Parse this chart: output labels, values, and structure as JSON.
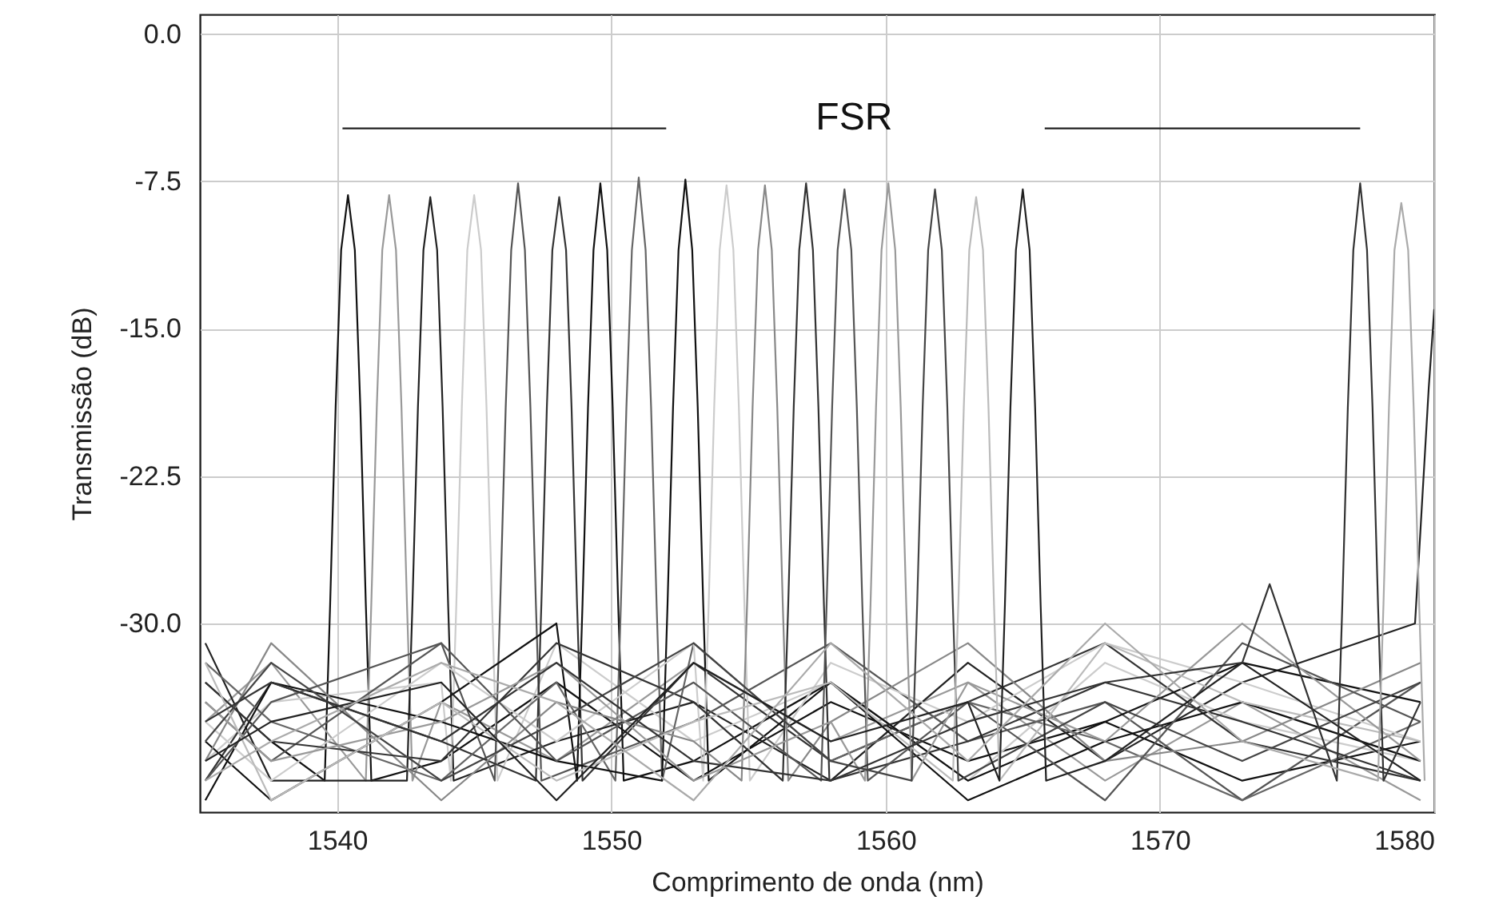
{
  "chart_data": {
    "type": "line",
    "xlabel": "Comprimento de onda (nm)",
    "ylabel": "Transmissão (dB)",
    "xlim": [
      1535,
      1580
    ],
    "ylim": [
      -39.6,
      1
    ],
    "xticks": [
      1540,
      1550,
      1560,
      1570,
      1580
    ],
    "yticks": [
      {
        "value": 0,
        "label": "0.0"
      },
      {
        "value": -7.5,
        "label": "-7.5"
      },
      {
        "value": -15,
        "label": "-15.0"
      },
      {
        "value": -22.5,
        "label": "-22.5"
      },
      {
        "value": -30,
        "label": "-30.0"
      }
    ],
    "grid": true,
    "marker": "none",
    "line_style": "solid",
    "annotations": [
      "FSR"
    ],
    "series": [
      {
        "color": "#111111",
        "x": [
          1535.2,
          1537.6,
          1539.55,
          1539.75,
          1539.95,
          1540.15,
          1540.4,
          1540.65,
          1540.85,
          1541.05,
          1541.25,
          1543.8,
          1548,
          1553,
          1558,
          1563,
          1568,
          1573,
          1579.5
        ],
        "values": [
          -33,
          -36,
          -38,
          -29,
          -19,
          -11,
          -8.2,
          -11,
          -19,
          -29,
          -38,
          -37,
          -33,
          -38,
          -34,
          -37,
          -35,
          -38,
          -36
        ]
      },
      {
        "color": "#999999",
        "x": [
          1535.2,
          1537.6,
          1541.05,
          1541.25,
          1541.45,
          1541.65,
          1541.9,
          1542.15,
          1542.35,
          1542.55,
          1542.75,
          1543.8,
          1548,
          1553,
          1558,
          1563,
          1568,
          1573,
          1579.5
        ],
        "values": [
          -35,
          -32,
          -38,
          -29,
          -19,
          -11,
          -8.2,
          -11,
          -19,
          -29,
          -38,
          -34,
          -37,
          -32,
          -36,
          -33,
          -38,
          -34,
          -39
        ]
      },
      {
        "color": "#222222",
        "x": [
          1535.2,
          1537.6,
          1542.55,
          1542.75,
          1542.95,
          1543.15,
          1543.4,
          1543.65,
          1543.85,
          1544.05,
          1544.25,
          1548,
          1553,
          1558,
          1563,
          1568,
          1573,
          1579.3,
          1579.8,
          1580
        ],
        "values": [
          -31,
          -38,
          -38,
          -29,
          -19,
          -11,
          -8.3,
          -11,
          -19,
          -29,
          -38,
          -36,
          -34,
          -38,
          -32,
          -37,
          -33,
          -30,
          -18,
          -14
        ]
      },
      {
        "color": "#cccccc",
        "x": [
          1535.2,
          1537.6,
          1543.8,
          1544.15,
          1544.35,
          1544.55,
          1544.75,
          1545,
          1545.25,
          1545.45,
          1545.65,
          1545.85,
          1548,
          1553,
          1558,
          1563,
          1568,
          1573,
          1579.5
        ],
        "values": [
          -37,
          -34,
          -33,
          -38,
          -29,
          -19,
          -11,
          -8.2,
          -11,
          -19,
          -29,
          -38,
          -31,
          -36,
          -33,
          -38,
          -32,
          -35,
          -37
        ]
      },
      {
        "color": "#555555",
        "x": [
          1535.2,
          1537.6,
          1543.8,
          1545.75,
          1545.95,
          1546.15,
          1546.35,
          1546.6,
          1546.85,
          1547.05,
          1547.25,
          1547.45,
          1553,
          1558,
          1563,
          1568,
          1573,
          1579.5
        ],
        "values": [
          -34,
          -37,
          -31,
          -38,
          -29,
          -19,
          -11,
          -7.6,
          -11,
          -19,
          -29,
          -38,
          -35,
          -31,
          -36,
          -34,
          -39,
          -33
        ]
      },
      {
        "color": "#333333",
        "x": [
          1535.2,
          1537.6,
          1543.8,
          1547.25,
          1547.45,
          1547.65,
          1547.85,
          1548.1,
          1548.35,
          1548.55,
          1548.75,
          1548.95,
          1553,
          1558,
          1563,
          1568,
          1573,
          1579.5
        ],
        "values": [
          -38,
          -33,
          -36,
          -38,
          -29,
          -19,
          -11,
          -8.3,
          -11,
          -19,
          -29,
          -38,
          -32,
          -37,
          -34,
          -31,
          -36,
          -38
        ]
      },
      {
        "color": "#111111",
        "x": [
          1535.2,
          1537.6,
          1543.8,
          1548,
          1548.75,
          1548.95,
          1549.15,
          1549.35,
          1549.6,
          1549.85,
          1550.05,
          1550.25,
          1550.45,
          1553,
          1558,
          1563,
          1568,
          1573,
          1579.5
        ],
        "values": [
          -36,
          -39,
          -34,
          -30,
          -38,
          -29,
          -19,
          -11,
          -7.6,
          -11,
          -19,
          -29,
          -38,
          -37,
          -33,
          -38,
          -35,
          -32,
          -34
        ]
      },
      {
        "color": "#666666",
        "x": [
          1535.2,
          1537.6,
          1543.8,
          1548,
          1550.15,
          1550.35,
          1550.55,
          1550.75,
          1551,
          1551.25,
          1551.45,
          1551.65,
          1551.85,
          1553,
          1558,
          1563,
          1568,
          1573,
          1579.5
        ],
        "values": [
          -32,
          -35,
          -38,
          -33,
          -38,
          -29,
          -19,
          -11,
          -7.3,
          -11,
          -19,
          -29,
          -38,
          -31,
          -37,
          -34,
          -36,
          -39,
          -35
        ]
      },
      {
        "color": "#111111",
        "x": [
          1535.2,
          1537.6,
          1543.8,
          1548,
          1551.85,
          1552.05,
          1552.25,
          1552.45,
          1552.7,
          1552.95,
          1553.15,
          1553.35,
          1553.55,
          1558,
          1563,
          1568,
          1573,
          1579.5
        ],
        "values": [
          -39,
          -33,
          -35,
          -37,
          -38,
          -29,
          -19,
          -11,
          -7.4,
          -11,
          -19,
          -29,
          -38,
          -33,
          -39,
          -36,
          -34,
          -37
        ]
      },
      {
        "color": "#cccccc",
        "x": [
          1535.2,
          1537.6,
          1543.8,
          1548,
          1553,
          1553.35,
          1553.55,
          1553.75,
          1553.95,
          1554.2,
          1554.45,
          1554.65,
          1554.85,
          1555.05,
          1558,
          1563,
          1568,
          1573,
          1579.5
        ],
        "values": [
          -35,
          -38,
          -32,
          -36,
          -31,
          -38,
          -29,
          -19,
          -11,
          -7.7,
          -11,
          -19,
          -29,
          -38,
          -32,
          -35,
          -31,
          -33,
          -36
        ]
      },
      {
        "color": "#888888",
        "x": [
          1535.2,
          1537.6,
          1543.8,
          1548,
          1553,
          1554.75,
          1554.95,
          1555.15,
          1555.35,
          1555.6,
          1555.85,
          1556.05,
          1556.25,
          1556.45,
          1558,
          1563,
          1568,
          1573,
          1579.5
        ],
        "values": [
          -37,
          -31,
          -39,
          -34,
          -36,
          -38,
          -29,
          -19,
          -11,
          -7.7,
          -11,
          -19,
          -29,
          -38,
          -35,
          -31,
          -37,
          -36,
          -32
        ]
      },
      {
        "color": "#333333",
        "x": [
          1535.2,
          1537.6,
          1543.8,
          1548,
          1553,
          1556.25,
          1556.45,
          1556.65,
          1556.85,
          1557.1,
          1557.35,
          1557.55,
          1557.75,
          1557.95,
          1563,
          1568,
          1573,
          1579.5
        ],
        "values": [
          -33,
          -36,
          -37,
          -31,
          -34,
          -38,
          -29,
          -19,
          -11,
          -7.6,
          -11,
          -19,
          -29,
          -38,
          -36,
          -33,
          -35,
          -38
        ]
      },
      {
        "color": "#555555",
        "x": [
          1535.2,
          1537.6,
          1543.8,
          1548,
          1553,
          1557.65,
          1557.85,
          1558.05,
          1558.25,
          1558.5,
          1558.75,
          1558.95,
          1559.15,
          1559.35,
          1563,
          1568,
          1573,
          1579.5
        ],
        "values": [
          -38,
          -34,
          -31,
          -37,
          -33,
          -38,
          -29,
          -19,
          -11,
          -7.9,
          -11,
          -19,
          -29,
          -38,
          -34,
          -39,
          -31,
          -35
        ]
      },
      {
        "color": "#999999",
        "x": [
          1535.2,
          1537.6,
          1543.8,
          1548,
          1553,
          1558,
          1559.25,
          1559.45,
          1559.65,
          1559.85,
          1560.1,
          1560.35,
          1560.55,
          1560.75,
          1560.95,
          1563,
          1568,
          1573,
          1579.5
        ],
        "values": [
          -34,
          -37,
          -35,
          -32,
          -38,
          -35,
          -38,
          -29,
          -19,
          -11,
          -7.6,
          -11,
          -19,
          -29,
          -38,
          -33,
          -36,
          -30,
          -37
        ]
      },
      {
        "color": "#444444",
        "x": [
          1535.2,
          1537.6,
          1543.8,
          1548,
          1553,
          1558,
          1560.95,
          1561.15,
          1561.35,
          1561.55,
          1561.8,
          1562.05,
          1562.25,
          1562.45,
          1562.65,
          1568,
          1573,
          1579.5
        ],
        "values": [
          -36,
          -32,
          -38,
          -35,
          -31,
          -37,
          -38,
          -29,
          -19,
          -11,
          -7.9,
          -11,
          -19,
          -29,
          -38,
          -34,
          -37,
          -33
        ]
      },
      {
        "color": "#bbbbbb",
        "x": [
          1535.2,
          1537.6,
          1543.8,
          1548,
          1553,
          1558,
          1562.45,
          1562.65,
          1562.85,
          1563.05,
          1563.3,
          1563.55,
          1563.75,
          1563.95,
          1564.15,
          1568,
          1573,
          1579.5
        ],
        "values": [
          -32,
          -39,
          -34,
          -38,
          -35,
          -33,
          -38,
          -29,
          -19,
          -11,
          -8.3,
          -11,
          -19,
          -29,
          -38,
          -31,
          -34,
          -36
        ]
      },
      {
        "color": "#222222",
        "x": [
          1535.2,
          1537.6,
          1543.8,
          1548,
          1553,
          1558,
          1563,
          1564.15,
          1564.35,
          1564.55,
          1564.75,
          1565,
          1565.25,
          1565.45,
          1565.65,
          1565.85,
          1568,
          1573,
          1579.5
        ],
        "values": [
          -37,
          -35,
          -33,
          -39,
          -32,
          -36,
          -34,
          -38,
          -29,
          -19,
          -11,
          -7.9,
          -11,
          -19,
          -29,
          -38,
          -37,
          -32,
          -38
        ]
      },
      {
        "color": "#333333",
        "x": [
          1535.2,
          1537.6,
          1543.8,
          1548,
          1553,
          1558,
          1563,
          1568,
          1573,
          1574,
          1576.45,
          1576.65,
          1576.85,
          1577.05,
          1577.3,
          1577.55,
          1577.75,
          1577.95,
          1578.15,
          1579.5
        ],
        "values": [
          -35,
          -33,
          -36,
          -32,
          -37,
          -38,
          -35,
          -33,
          -32,
          -28,
          -38,
          -29,
          -19,
          -11,
          -7.6,
          -11,
          -19,
          -29,
          -38,
          -34
        ]
      },
      {
        "color": "#aaaaaa",
        "x": [
          1535.2,
          1537.6,
          1543.8,
          1548,
          1553,
          1558,
          1563,
          1568,
          1573,
          1577.95,
          1578.15,
          1578.35,
          1578.55,
          1578.8,
          1579.05,
          1579.25,
          1579.45,
          1579.65
        ],
        "values": [
          -38,
          -36,
          -32,
          -34,
          -39,
          -31,
          -37,
          -30,
          -36,
          -38,
          -29,
          -19,
          -11,
          -8.6,
          -11,
          -19,
          -29,
          -38
        ]
      },
      {
        "color": "#222222",
        "x": [
          1540.2,
          1552.0
        ],
        "values": [
          -4.8,
          -4.8
        ]
      },
      {
        "color": "#222222",
        "x": [
          1565.8,
          1577.3
        ],
        "values": [
          -4.8,
          -4.8
        ]
      }
    ]
  }
}
